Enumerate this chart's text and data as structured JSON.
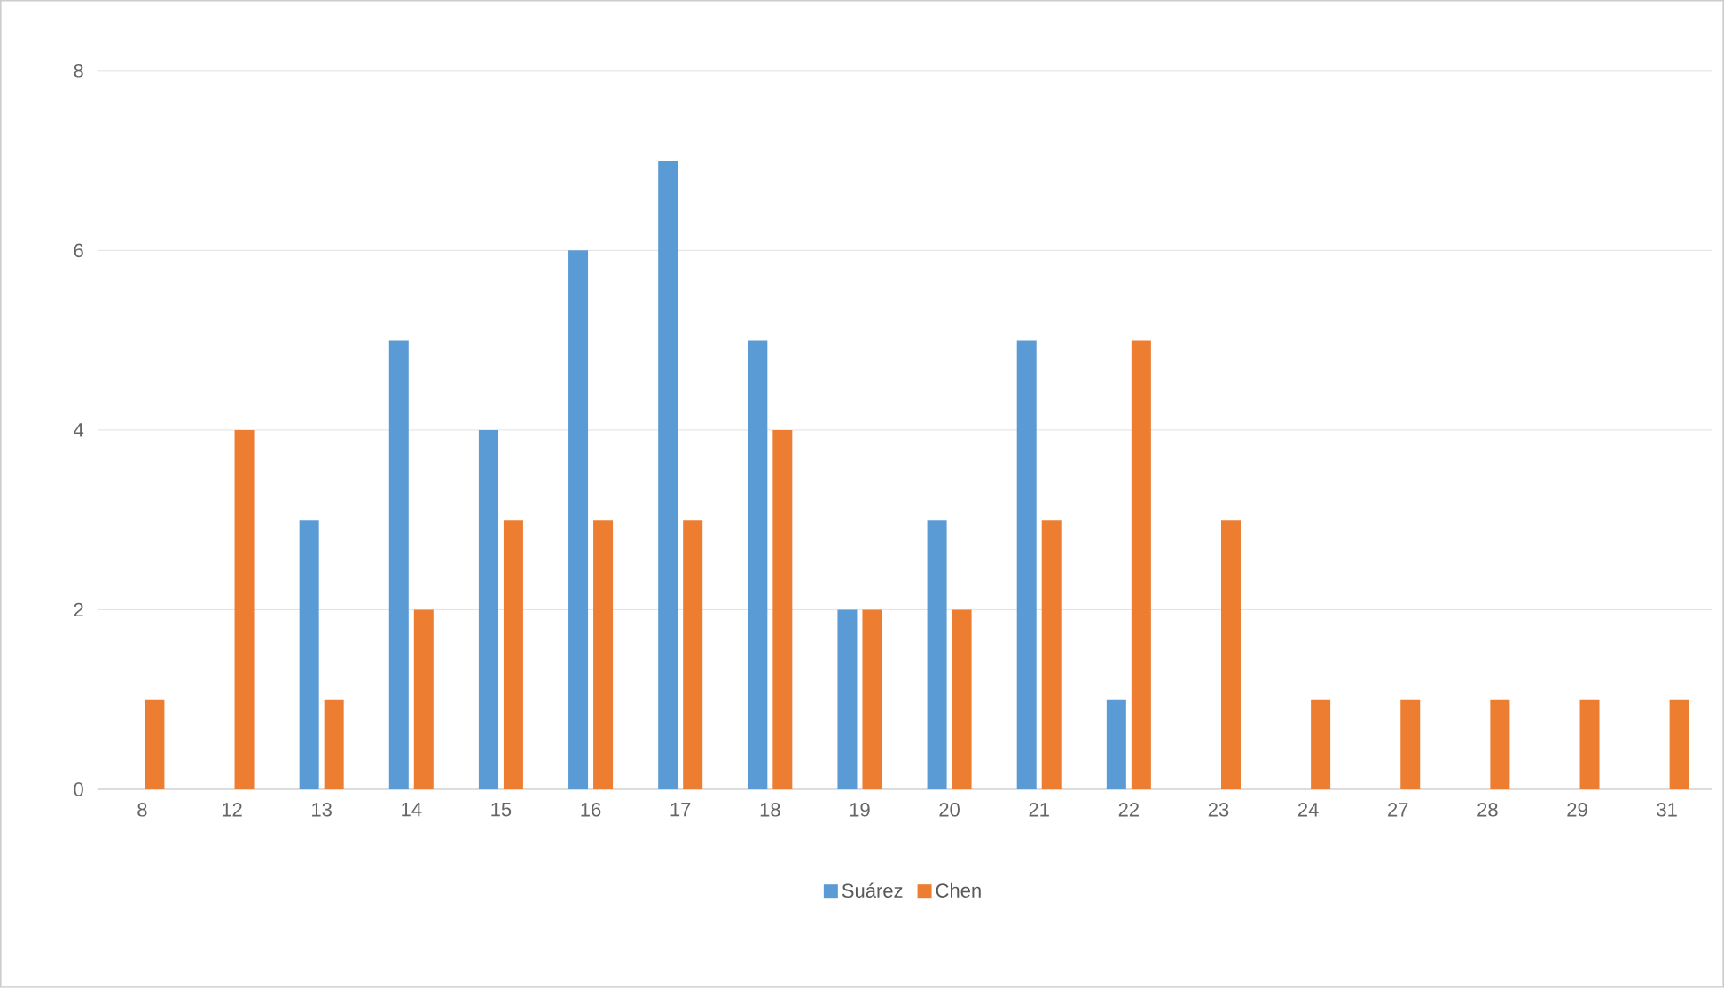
{
  "chart_data": {
    "type": "bar",
    "categories": [
      "8",
      "12",
      "13",
      "14",
      "15",
      "16",
      "17",
      "18",
      "19",
      "20",
      "21",
      "22",
      "23",
      "24",
      "27",
      "28",
      "29",
      "31"
    ],
    "series": [
      {
        "name": "Suárez",
        "color": "#5b9bd5",
        "values": [
          0,
          0,
          3,
          5,
          4,
          6,
          7,
          5,
          2,
          3,
          5,
          1,
          0,
          0,
          0,
          0,
          0,
          0
        ]
      },
      {
        "name": "Chen",
        "color": "#ed7d31",
        "values": [
          1,
          4,
          1,
          2,
          3,
          3,
          3,
          4,
          2,
          2,
          3,
          5,
          3,
          1,
          1,
          1,
          1,
          1
        ]
      }
    ],
    "ylim": [
      0,
      8
    ],
    "yticks": [
      0,
      2,
      4,
      6,
      8
    ],
    "grid": "y",
    "legend": "bottom"
  }
}
